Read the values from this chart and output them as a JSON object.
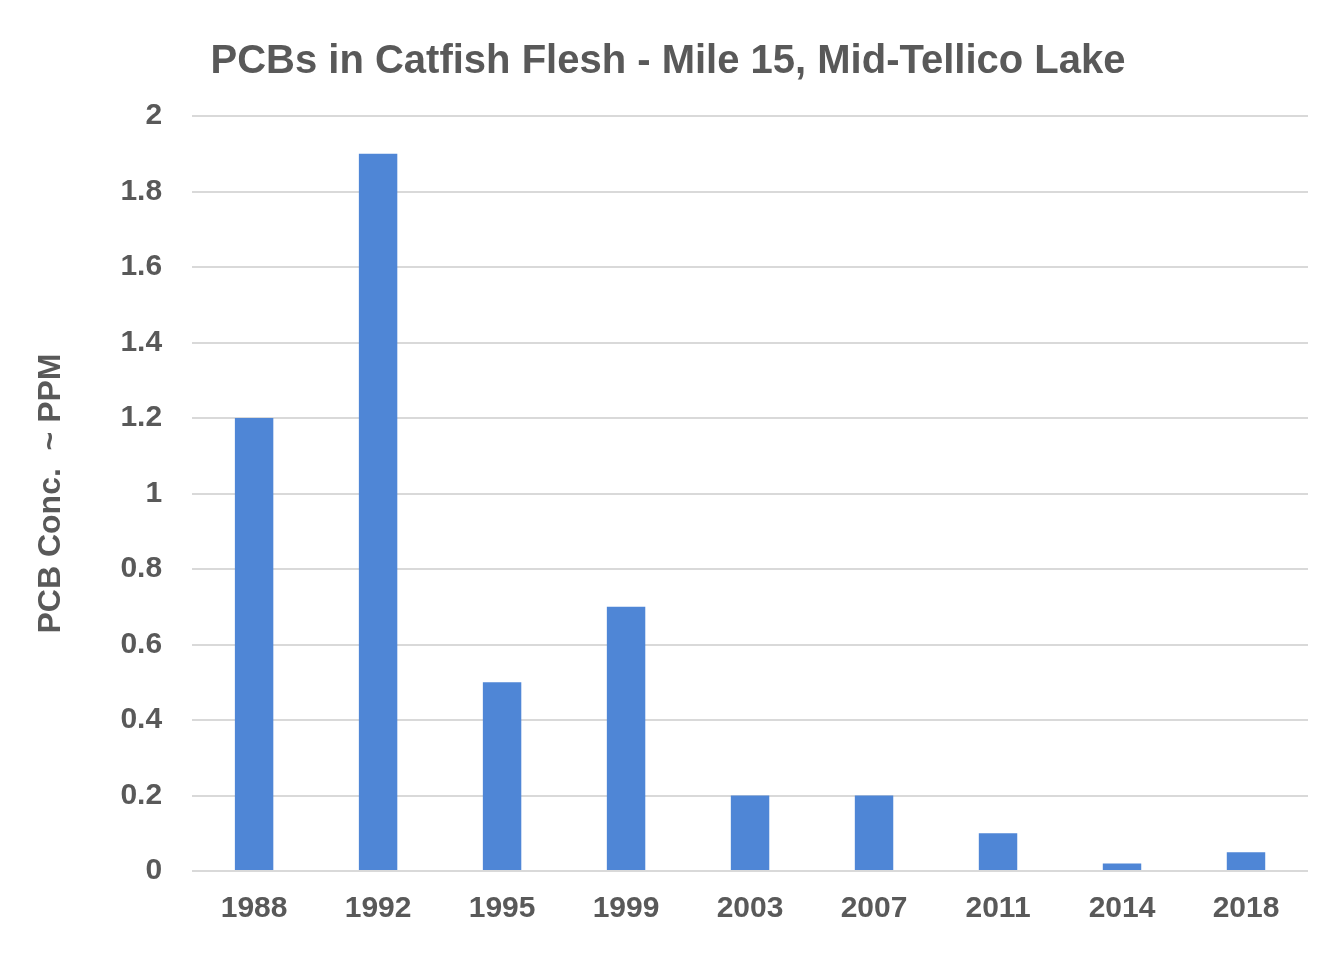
{
  "chart_data": {
    "type": "bar",
    "title": "PCBs in Catfish Flesh - Mile 15, Mid-Tellico Lake",
    "ylabel": "PCB Conc.  ~ PPM",
    "categories": [
      "1988",
      "1992",
      "1995",
      "1999",
      "2003",
      "2007",
      "2011",
      "2014",
      "2018"
    ],
    "values": [
      1.2,
      1.9,
      0.5,
      0.7,
      0.2,
      0.2,
      0.1,
      0.02,
      0.05
    ],
    "color": "#4f86d6",
    "ylim": [
      0,
      2
    ],
    "yticks": [
      0,
      {
        "value": 0.2,
        "label": "0.2"
      },
      {
        "value": 0.4,
        "label": "0.4"
      },
      {
        "value": 0.6,
        "label": "0.6"
      },
      {
        "value": 0.8,
        "label": "0.8"
      },
      1,
      {
        "value": 1.2,
        "label": "1.2"
      },
      {
        "value": 1.4,
        "label": "1.4"
      },
      {
        "value": 1.6,
        "label": "1.6"
      },
      {
        "value": 1.8,
        "label": "1.8"
      },
      2
    ],
    "grid": "y"
  }
}
